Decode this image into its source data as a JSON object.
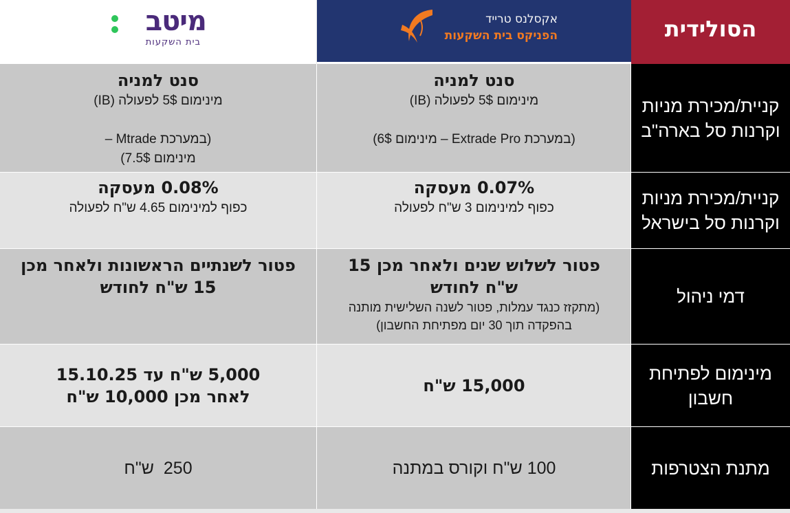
{
  "header": {
    "brand_title": "הסולידית",
    "excellence_logo": {
      "line1": "אקסלנס טרייד",
      "line2": "הפניקס בית השקעות"
    },
    "meitav_logo": {
      "word": "מיטב",
      "sub": "בית השקעות"
    }
  },
  "rows": [
    {
      "label": "קניית/מכירת מניות וקרנות סל בארה\"ב",
      "excellence": {
        "title": "סנט למניה",
        "line1": "מינימום 5$ לפעולה (IB)",
        "line2": "(במערכת Extrade Pro – מינימום 6$)"
      },
      "meitav": {
        "title": "סנט למניה",
        "line1": "מינימום 5$ לפעולה (IB)",
        "line2": "(במערכת Mtrade –",
        "line3": "מינימום 7.5$)"
      }
    },
    {
      "label": "קניית/מכירת מניות וקרנות סל בישראל",
      "excellence": {
        "title": "0.07% מעסקה",
        "line1": "כפוף למינימום 3 ש\"ח לפעולה"
      },
      "meitav": {
        "title": "0.08% מעסקה",
        "line1": "כפוף למינימום 4.65 ש\"ח לפעולה"
      }
    },
    {
      "label": "דמי ניהול",
      "excellence": {
        "title_line1": "פטור לשלוש שנים ולאחר מכן 15",
        "title_line2": "ש\"ח לחודש",
        "note_line1": "(מתקזז כנגד עמלות, פטור לשנה השלישית מותנה",
        "note_line2": "בהפקדה תוך 30 יום מפתיחת החשבון)"
      },
      "meitav": {
        "title_line1": "פטור לשנתיים הראשונות ולאחר מכן",
        "title_line2": "15 ש\"ח לחודש"
      }
    },
    {
      "label": "מינימום לפתיחת חשבון",
      "excellence": {
        "title": "15,000 ש\"ח"
      },
      "meitav": {
        "title_line1": "5,000 ש\"ח עד 15.10.25",
        "title_line2": "לאחר מכן 10,000 ש\"ח"
      }
    },
    {
      "label": "מתנת הצטרפות",
      "excellence": {
        "value": "100 ש\"ח וקורס במתנה"
      },
      "meitav": {
        "value": "250  ש\"ח"
      }
    }
  ]
}
